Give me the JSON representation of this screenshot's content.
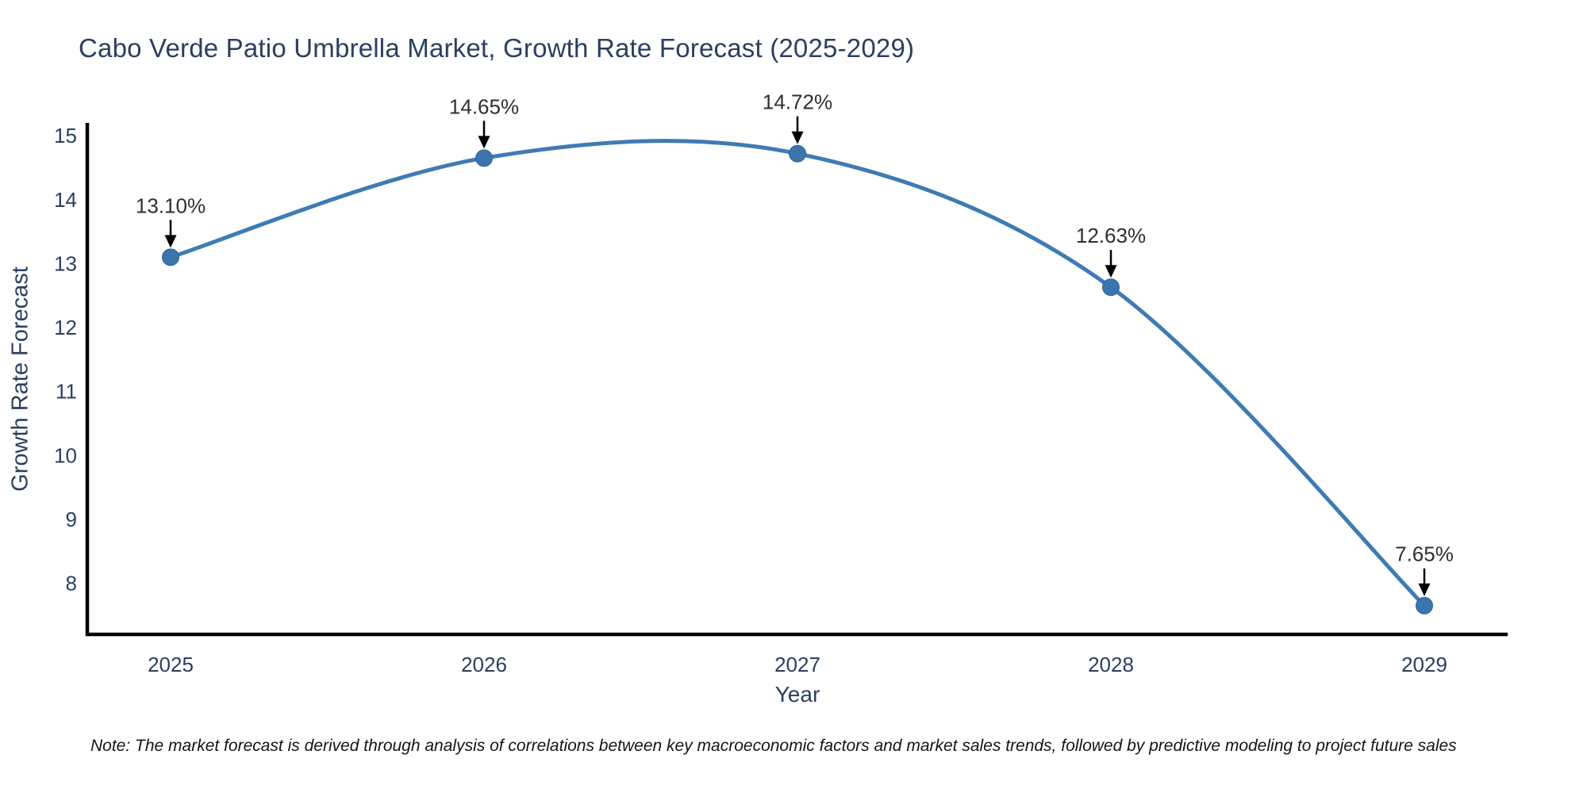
{
  "note": "Note: The market forecast is derived through analysis of correlations between key macroeconomic factors and market sales trends, followed by predictive modeling to project future sales",
  "colors": {
    "line": "#3f7bb3",
    "marker": "#3a76ad",
    "marker_edge": "#2f648f",
    "axis": "#000000",
    "tick": "#2a3f5f",
    "annotation_text": "#2e2e2e",
    "arrow": "#000000",
    "title_text": "#2a3f5f",
    "background": "#ffffff"
  },
  "chart_data": {
    "type": "line",
    "title": "Cabo Verde Patio Umbrella Market, Growth Rate Forecast (2025-2029)",
    "xlabel": "Year",
    "ylabel": "Growth Rate Forecast",
    "x": [
      2025,
      2026,
      2027,
      2028,
      2029
    ],
    "values": [
      13.1,
      14.65,
      14.72,
      12.63,
      7.65
    ],
    "labels": [
      "13.10%",
      "14.65%",
      "14.72%",
      "12.63%",
      "7.65%"
    ],
    "xticks": [
      "2025",
      "2026",
      "2027",
      "2028",
      "2029"
    ],
    "yticks": [
      8,
      9,
      10,
      11,
      12,
      13,
      14,
      15
    ],
    "ylim": [
      7.2,
      15.2
    ],
    "grid": false,
    "legend": "none",
    "curve": "smooth-spline",
    "marker_style": "filled-circle",
    "annotation_style": "value-label-with-down-arrow"
  }
}
